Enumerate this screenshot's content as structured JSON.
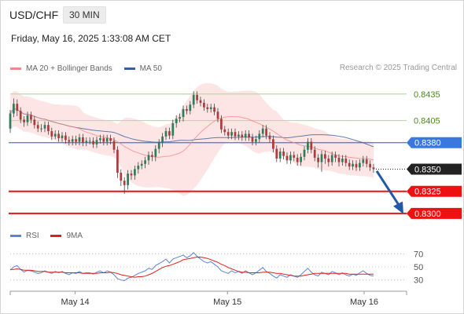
{
  "header": {
    "symbol": "USD/CHF",
    "timeframe": "30 MIN",
    "datetime": "Friday, May 16, 2025 1:33:08 AM CET",
    "credit": "Research © 2025 Trading Central"
  },
  "legend": {
    "ma20_label": "MA 20 + Bollinger Bands",
    "ma50_label": "MA 50",
    "rsi_label": "RSI",
    "ma9_label": "9MA"
  },
  "colors": {
    "bullish": "#2e7d5b",
    "bearish": "#b03a3a",
    "ma20": "#f08a8a",
    "band": "#fcdcdc",
    "ma50": "#3a5f9a",
    "resistance_line": "#b7dba0",
    "pivot_line": "#3a78e0",
    "support_line": "#ee1111",
    "rsi": "#5b83d6",
    "rsi_ma": "#dd2020",
    "arrow": "#2457a6",
    "last_price_bg": "#222222"
  },
  "chart_data": {
    "type": "candlestick",
    "symbol": "USD/CHF",
    "timeframe": "30 MIN",
    "x_tick_labels": [
      "May 14",
      "May 15",
      "May 16"
    ],
    "price_range": [
      0.8283,
      0.8457
    ],
    "levels": [
      {
        "value": 0.8435,
        "label": "0.8435",
        "kind": "resistance"
      },
      {
        "value": 0.8405,
        "label": "0.8405",
        "kind": "resistance"
      },
      {
        "value": 0.838,
        "label": "0.8380",
        "kind": "pivot"
      },
      {
        "value": 0.8325,
        "label": "0.8325",
        "kind": "support"
      },
      {
        "value": 0.83,
        "label": "0.8300",
        "kind": "support"
      }
    ],
    "last_price": {
      "value": 0.835,
      "label": "0.8350"
    },
    "forecast_arrow": {
      "from": 0.8348,
      "to": 0.8302
    },
    "candles": [
      [
        0.8396,
        0.8413,
        0.8417,
        0.8391
      ],
      [
        0.8413,
        0.8424,
        0.843,
        0.8409
      ],
      [
        0.8424,
        0.8416,
        0.8429,
        0.841
      ],
      [
        0.8416,
        0.8406,
        0.842,
        0.8402
      ],
      [
        0.8406,
        0.8403,
        0.841,
        0.8398
      ],
      [
        0.8403,
        0.8411,
        0.8415,
        0.8399
      ],
      [
        0.8411,
        0.8406,
        0.8415,
        0.8402
      ],
      [
        0.8406,
        0.84,
        0.841,
        0.8396
      ],
      [
        0.84,
        0.8396,
        0.8404,
        0.8392
      ],
      [
        0.8396,
        0.8396,
        0.8401,
        0.8392
      ],
      [
        0.8396,
        0.84,
        0.8404,
        0.8392
      ],
      [
        0.84,
        0.8393,
        0.8404,
        0.8389
      ],
      [
        0.8393,
        0.8387,
        0.8397,
        0.8383
      ],
      [
        0.8387,
        0.839,
        0.8394,
        0.8384
      ],
      [
        0.839,
        0.8385,
        0.8394,
        0.8381
      ],
      [
        0.8385,
        0.8388,
        0.8392,
        0.8381
      ],
      [
        0.8388,
        0.8383,
        0.8392,
        0.8379
      ],
      [
        0.8383,
        0.8381,
        0.8387,
        0.8377
      ],
      [
        0.8381,
        0.8384,
        0.8388,
        0.8377
      ],
      [
        0.8384,
        0.8381,
        0.8388,
        0.8377
      ],
      [
        0.8381,
        0.8386,
        0.839,
        0.8377
      ],
      [
        0.8386,
        0.838,
        0.839,
        0.8376
      ],
      [
        0.838,
        0.8382,
        0.8386,
        0.8376
      ],
      [
        0.8382,
        0.8382,
        0.8386,
        0.8378
      ],
      [
        0.8382,
        0.8378,
        0.8386,
        0.8374
      ],
      [
        0.8378,
        0.8383,
        0.8387,
        0.8374
      ],
      [
        0.8383,
        0.8385,
        0.8389,
        0.8379
      ],
      [
        0.8385,
        0.8381,
        0.8389,
        0.8377
      ],
      [
        0.8381,
        0.8385,
        0.8389,
        0.8377
      ],
      [
        0.8385,
        0.8382,
        0.8389,
        0.8378
      ],
      [
        0.8382,
        0.8372,
        0.8386,
        0.8368
      ],
      [
        0.8372,
        0.8346,
        0.8376,
        0.834
      ],
      [
        0.8346,
        0.8337,
        0.835,
        0.8331
      ],
      [
        0.8337,
        0.8332,
        0.8341,
        0.8322
      ],
      [
        0.8332,
        0.8345,
        0.8349,
        0.8327
      ],
      [
        0.8345,
        0.8343,
        0.8349,
        0.8338
      ],
      [
        0.8343,
        0.835,
        0.8354,
        0.8338
      ],
      [
        0.835,
        0.8354,
        0.8358,
        0.8345
      ],
      [
        0.8354,
        0.8356,
        0.836,
        0.835
      ],
      [
        0.8356,
        0.836,
        0.8364,
        0.8351
      ],
      [
        0.836,
        0.8366,
        0.837,
        0.8355
      ],
      [
        0.8366,
        0.8364,
        0.837,
        0.8359
      ],
      [
        0.8364,
        0.8373,
        0.8377,
        0.8359
      ],
      [
        0.8373,
        0.838,
        0.8384,
        0.8368
      ],
      [
        0.838,
        0.8387,
        0.8391,
        0.8375
      ],
      [
        0.8387,
        0.8393,
        0.8397,
        0.8383
      ],
      [
        0.8393,
        0.8388,
        0.8397,
        0.8384
      ],
      [
        0.8388,
        0.8402,
        0.8406,
        0.8384
      ],
      [
        0.8402,
        0.8407,
        0.8411,
        0.8397
      ],
      [
        0.8407,
        0.8409,
        0.8413,
        0.8403
      ],
      [
        0.8409,
        0.8418,
        0.8422,
        0.8404
      ],
      [
        0.8418,
        0.8416,
        0.8422,
        0.8412
      ],
      [
        0.8416,
        0.8423,
        0.8427,
        0.8412
      ],
      [
        0.8423,
        0.8434,
        0.8438,
        0.8419
      ],
      [
        0.8434,
        0.8428,
        0.8438,
        0.8424
      ],
      [
        0.8428,
        0.8425,
        0.8432,
        0.8421
      ],
      [
        0.8425,
        0.842,
        0.8429,
        0.8416
      ],
      [
        0.842,
        0.8418,
        0.8424,
        0.8414
      ],
      [
        0.8418,
        0.842,
        0.8424,
        0.8414
      ],
      [
        0.842,
        0.8415,
        0.8424,
        0.8411
      ],
      [
        0.8415,
        0.8407,
        0.8419,
        0.8403
      ],
      [
        0.8407,
        0.8395,
        0.8411,
        0.8391
      ],
      [
        0.8395,
        0.8392,
        0.8399,
        0.8388
      ],
      [
        0.8392,
        0.8388,
        0.8396,
        0.8384
      ],
      [
        0.8388,
        0.8392,
        0.8396,
        0.8384
      ],
      [
        0.8392,
        0.8387,
        0.8396,
        0.8383
      ],
      [
        0.8387,
        0.8389,
        0.8393,
        0.8383
      ],
      [
        0.8389,
        0.8386,
        0.8393,
        0.8382
      ],
      [
        0.8386,
        0.839,
        0.8394,
        0.8382
      ],
      [
        0.839,
        0.8386,
        0.8394,
        0.8382
      ],
      [
        0.8386,
        0.8381,
        0.839,
        0.8377
      ],
      [
        0.8381,
        0.8384,
        0.8388,
        0.8377
      ],
      [
        0.8384,
        0.839,
        0.8394,
        0.838
      ],
      [
        0.839,
        0.8396,
        0.84,
        0.8386
      ],
      [
        0.8396,
        0.8388,
        0.84,
        0.8384
      ],
      [
        0.8388,
        0.8384,
        0.8392,
        0.838
      ],
      [
        0.8384,
        0.8373,
        0.8388,
        0.8369
      ],
      [
        0.8373,
        0.8362,
        0.8377,
        0.8358
      ],
      [
        0.8362,
        0.837,
        0.8374,
        0.8358
      ],
      [
        0.837,
        0.8365,
        0.8374,
        0.8361
      ],
      [
        0.8365,
        0.836,
        0.8369,
        0.8356
      ],
      [
        0.836,
        0.8366,
        0.837,
        0.8356
      ],
      [
        0.8366,
        0.8363,
        0.837,
        0.8359
      ],
      [
        0.8363,
        0.8358,
        0.8367,
        0.8354
      ],
      [
        0.8358,
        0.8364,
        0.8368,
        0.8354
      ],
      [
        0.8364,
        0.8372,
        0.8376,
        0.836
      ],
      [
        0.8372,
        0.8381,
        0.8385,
        0.8368
      ],
      [
        0.8381,
        0.8372,
        0.8385,
        0.8368
      ],
      [
        0.8372,
        0.8363,
        0.8376,
        0.8359
      ],
      [
        0.8363,
        0.8358,
        0.8367,
        0.8352
      ],
      [
        0.8358,
        0.8367,
        0.8371,
        0.8347
      ],
      [
        0.8367,
        0.8362,
        0.8371,
        0.8356
      ],
      [
        0.8362,
        0.8358,
        0.8366,
        0.8353
      ],
      [
        0.8358,
        0.8366,
        0.837,
        0.8354
      ],
      [
        0.8366,
        0.8363,
        0.837,
        0.8358
      ],
      [
        0.8363,
        0.8358,
        0.8367,
        0.8353
      ],
      [
        0.8358,
        0.8362,
        0.8366,
        0.8354
      ],
      [
        0.8362,
        0.8357,
        0.8366,
        0.8353
      ],
      [
        0.8357,
        0.8353,
        0.8361,
        0.8349
      ],
      [
        0.8353,
        0.8356,
        0.836,
        0.8349
      ],
      [
        0.8356,
        0.8352,
        0.836,
        0.8348
      ],
      [
        0.8352,
        0.8357,
        0.8361,
        0.8348
      ],
      [
        0.8357,
        0.8361,
        0.8365,
        0.8353
      ],
      [
        0.8361,
        0.8356,
        0.8365,
        0.8352
      ],
      [
        0.8356,
        0.8352,
        0.836,
        0.8348
      ],
      [
        0.8352,
        0.835,
        0.8356,
        0.8346
      ]
    ],
    "rsi": {
      "ticks": [
        70,
        50,
        30
      ],
      "range": [
        20,
        80
      ],
      "values": [
        45,
        50,
        52,
        46,
        42,
        45,
        44,
        42,
        40,
        41,
        44,
        42,
        40,
        43,
        41,
        43,
        40,
        38,
        41,
        40,
        43,
        40,
        41,
        41,
        39,
        42,
        44,
        41,
        44,
        42,
        38,
        32,
        30,
        29,
        33,
        34,
        37,
        40,
        42,
        44,
        48,
        46,
        52,
        55,
        58,
        62,
        56,
        62,
        64,
        66,
        68,
        64,
        67,
        72,
        66,
        62,
        58,
        56,
        58,
        54,
        50,
        44,
        42,
        40,
        44,
        41,
        43,
        40,
        44,
        41,
        38,
        41,
        45,
        49,
        43,
        40,
        36,
        33,
        38,
        36,
        34,
        38,
        36,
        34,
        38,
        43,
        48,
        42,
        38,
        36,
        42,
        40,
        38,
        43,
        41,
        38,
        41,
        38,
        36,
        39,
        37,
        41,
        44,
        40,
        37,
        36
      ],
      "ma": [
        46,
        46,
        47,
        46,
        45,
        45,
        45,
        44,
        43,
        43,
        43,
        42,
        42,
        42,
        42,
        42,
        41,
        41,
        41,
        41,
        41,
        40,
        40,
        40,
        40,
        40,
        41,
        41,
        41,
        42,
        41,
        40,
        38,
        37,
        36,
        35,
        34,
        35,
        35,
        36,
        38,
        40,
        43,
        46,
        49,
        51,
        52,
        54,
        56,
        58,
        61,
        62,
        63,
        64,
        65,
        65,
        64,
        63,
        61,
        59,
        57,
        54,
        52,
        49,
        47,
        45,
        43,
        42,
        42,
        41,
        41,
        41,
        41,
        42,
        42,
        42,
        41,
        40,
        40,
        39,
        38,
        37,
        36,
        36,
        36,
        37,
        38,
        39,
        40,
        40,
        40,
        40,
        40,
        40,
        40,
        40,
        40,
        40,
        39,
        39,
        39,
        39,
        39,
        39,
        39,
        39
      ]
    }
  }
}
